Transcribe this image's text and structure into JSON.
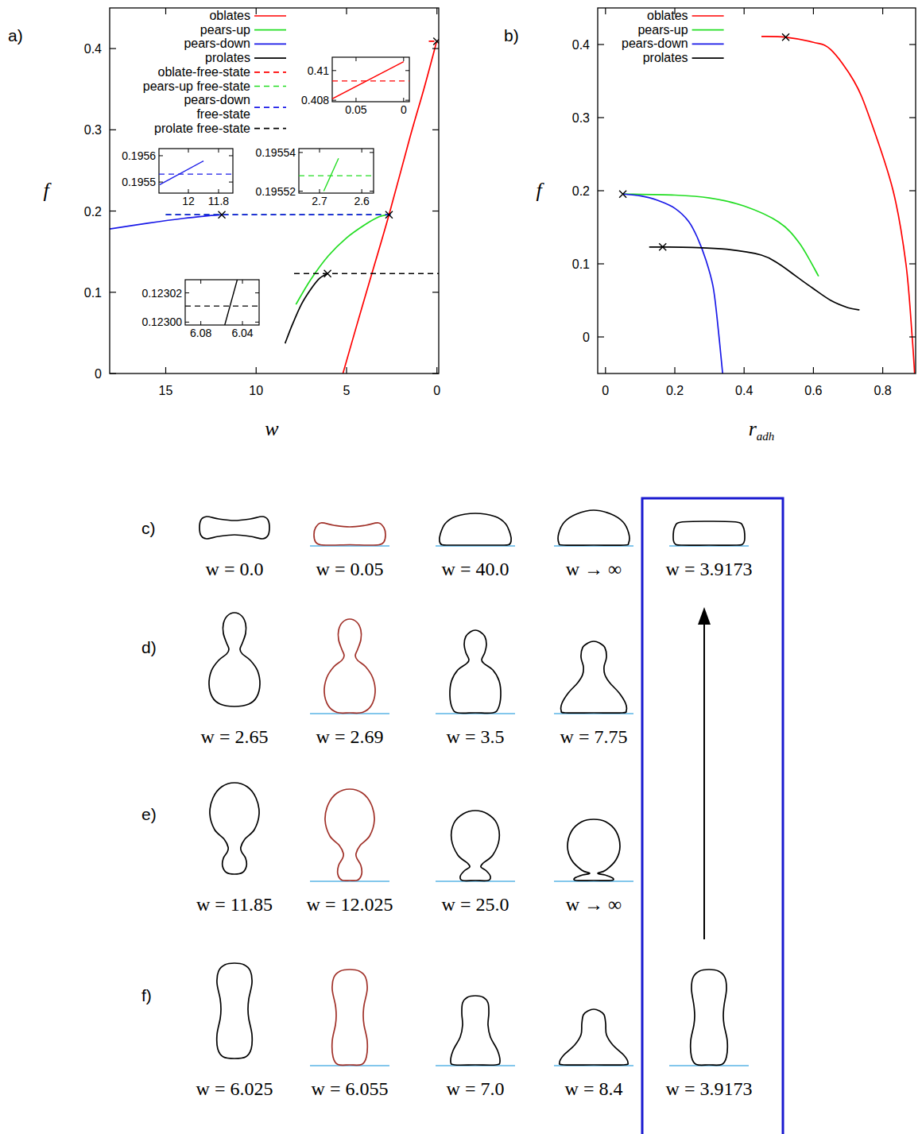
{
  "chart_data": [
    {
      "type": "line",
      "panel_label": "a)",
      "x_label": "w",
      "y_label": "f",
      "xlim": [
        18.1,
        -0.1
      ],
      "ylim": [
        0,
        0.45
      ],
      "xticks": [
        15,
        10,
        5,
        0
      ],
      "yticks": [
        0,
        0.1,
        0.2,
        0.3,
        0.4
      ],
      "grid": false,
      "legend": "top",
      "series": [
        {
          "name": "oblates",
          "color": "#ff0000",
          "line_style": "solid",
          "x": [
            5.2,
            4.4,
            3.6,
            2.65,
            1.5,
            0.7,
            0
          ],
          "values": [
            0,
            0.062,
            0.123,
            0.1955,
            0.29,
            0.352,
            0.41
          ]
        },
        {
          "name": "pears-up",
          "color": "#22dd22",
          "line_style": "solid",
          "x": [
            7.8,
            7,
            6,
            5,
            4,
            3.2,
            2.65
          ],
          "values": [
            0.085,
            0.115,
            0.145,
            0.167,
            0.183,
            0.193,
            0.1955
          ]
        },
        {
          "name": "pears-down",
          "color": "#1a1ae8",
          "line_style": "solid",
          "x": [
            18.1,
            16,
            14,
            12.5,
            11.9
          ],
          "values": [
            0.178,
            0.185,
            0.191,
            0.1945,
            0.1955
          ]
        },
        {
          "name": "prolates",
          "color": "#000000",
          "line_style": "solid",
          "x": [
            8.4,
            8,
            7.5,
            7,
            6.5,
            6.05
          ],
          "values": [
            0.037,
            0.06,
            0.085,
            0.103,
            0.117,
            0.123
          ]
        },
        {
          "name": "oblate-free-state",
          "color": "#ff0000",
          "line_style": "dashed",
          "x": [
            0.45,
            -0.1
          ],
          "values": [
            0.409,
            0.409
          ]
        },
        {
          "name": "pears-up free-state",
          "color": "#22dd22",
          "line_style": "dashed",
          "x": [
            15,
            2.5
          ],
          "values": [
            0.1955,
            0.1955
          ]
        },
        {
          "name": "pears-down\nfree-state",
          "color": "#1a1ae8",
          "line_style": "dashed",
          "x": [
            15,
            2.5
          ],
          "values": [
            0.1955,
            0.1955
          ]
        },
        {
          "name": "prolate free-state",
          "color": "#000000",
          "line_style": "dashed",
          "x": [
            7.9,
            -0.1
          ],
          "values": [
            0.123,
            0.123
          ]
        }
      ],
      "markers": {
        "marker": "x",
        "color": "#000000",
        "x": [
          0,
          2.65,
          11.9,
          6.05
        ],
        "values": [
          0.409,
          0.1955,
          0.1955,
          0.123
        ]
      },
      "insets": [
        {
          "xlim": [
            0.075,
            -0.006
          ],
          "ylim": [
            0.4079,
            0.4109
          ],
          "xticks": [
            0.05,
            0
          ],
          "yticks": [
            0.408,
            0.41
          ],
          "series": [
            {
              "color": "#ff0000",
              "line_style": "solid",
              "x": [
                0.075,
                0
              ],
              "values": [
                0.4081,
                0.4106
              ]
            },
            {
              "color": "#ff0000",
              "line_style": "dashed",
              "x": [
                0.075,
                -0.006
              ],
              "values": [
                0.4093,
                0.4093
              ]
            }
          ]
        },
        {
          "xlim": [
            12.195,
            11.705
          ],
          "ylim": [
            0.195458,
            0.195627
          ],
          "xticks": [
            12,
            11.8
          ],
          "yticks": [
            0.1956,
            0.1955
          ],
          "series": [
            {
              "color": "#1a1ae8",
              "line_style": "solid",
              "x": [
                12.19,
                11.9
              ],
              "values": [
                0.19549,
                0.19558
              ]
            },
            {
              "color": "#1a1ae8",
              "line_style": "dashed",
              "x": [
                12.195,
                11.705
              ],
              "values": [
                0.19553,
                0.19553
              ]
            }
          ]
        },
        {
          "xlim": [
            2.749,
            2.572
          ],
          "ylim": [
            0.195519,
            0.195542
          ],
          "xticks": [
            2.7,
            2.6
          ],
          "yticks": [
            0.19554,
            0.19552
          ],
          "series": [
            {
              "color": "#22dd22",
              "line_style": "solid",
              "x": [
                2.69,
                2.655
              ],
              "values": [
                0.19552,
                0.195537
              ]
            },
            {
              "color": "#22dd22",
              "line_style": "dashed",
              "x": [
                2.749,
                2.572
              ],
              "values": [
                0.195528,
                0.195528
              ]
            }
          ]
        },
        {
          "xlim": [
            6.095,
            6.024
          ],
          "ylim": [
            0.122998,
            0.123029
          ],
          "xticks": [
            6.08,
            6.04
          ],
          "yticks": [
            0.12302,
            {
              "value": 0.123,
              "label": "0.12300"
            }
          ],
          "series": [
            {
              "color": "#000000",
              "line_style": "solid",
              "x": [
                6.057,
                6.045
              ],
              "values": [
                0.122998,
                0.123029
              ]
            },
            {
              "color": "#000000",
              "line_style": "dashed",
              "x": [
                6.095,
                6.024
              ],
              "values": [
                0.123011,
                0.123011
              ]
            }
          ]
        }
      ]
    },
    {
      "type": "line",
      "panel_label": "b)",
      "x_label": "r",
      "x_label_subscript": "adh",
      "y_label": "f",
      "xlim": [
        -0.0225,
        0.895
      ],
      "ylim": [
        -0.05,
        0.45
      ],
      "xticks": [
        0,
        0.2,
        0.4,
        0.6,
        0.8
      ],
      "yticks": [
        0,
        0.1,
        0.2,
        0.3,
        0.4
      ],
      "grid": false,
      "legend": "top-left",
      "series": [
        {
          "name": "oblates",
          "color": "#ff0000",
          "line_style": "solid",
          "x": [
            0.45,
            0.52,
            0.6,
            0.65,
            0.717,
            0.762,
            0.83,
            0.867,
            0.885,
            0.892
          ],
          "values": [
            0.411,
            0.41,
            0.403,
            0.393,
            0.35,
            0.3,
            0.2,
            0.1,
            0,
            -0.05
          ]
        },
        {
          "name": "pears-up",
          "color": "#22dd22",
          "line_style": "solid",
          "x": [
            0.05,
            0.2,
            0.3,
            0.4,
            0.5,
            0.56,
            0.615
          ],
          "values": [
            0.1955,
            0.194,
            0.19,
            0.179,
            0.157,
            0.128,
            0.083
          ]
        },
        {
          "name": "pears-down",
          "color": "#1a1ae8",
          "line_style": "solid",
          "x": [
            0.05,
            0.1,
            0.15,
            0.2,
            0.24,
            0.266,
            0.29,
            0.31,
            0.322,
            0.338
          ],
          "values": [
            0.1955,
            0.193,
            0.187,
            0.176,
            0.158,
            0.135,
            0.105,
            0.07,
            0.026,
            -0.05
          ]
        },
        {
          "name": "prolates",
          "color": "#000000",
          "line_style": "solid",
          "x": [
            0.126,
            0.165,
            0.25,
            0.35,
            0.45,
            0.5,
            0.55,
            0.6,
            0.65,
            0.7,
            0.733
          ],
          "values": [
            0.123,
            0.123,
            0.1225,
            0.12,
            0.112,
            0.1,
            0.083,
            0.066,
            0.05,
            0.04,
            0.037
          ]
        }
      ],
      "markers": {
        "marker": "x",
        "color": "#000000",
        "x": [
          0.05,
          0.165,
          0.52
        ],
        "values": [
          0.1955,
          0.123,
          0.41
        ]
      }
    }
  ],
  "shape_panels": {
    "rows": [
      {
        "label": "c)",
        "shapes": [
          {
            "label": "w = 0.0",
            "substrate": false,
            "color": "#000000"
          },
          {
            "label": "w = 0.05",
            "substrate": true,
            "color": "#a03028"
          },
          {
            "label": "w = 40.0",
            "substrate": true,
            "color": "#000000"
          },
          {
            "label": "w → ∞",
            "substrate": true,
            "color": "#000000"
          },
          {
            "label": "w = 3.9173",
            "substrate": true,
            "color": "#000000"
          }
        ]
      },
      {
        "label": "d)",
        "shapes": [
          {
            "label": "w = 2.65",
            "substrate": false,
            "color": "#000000"
          },
          {
            "label": "w = 2.69",
            "substrate": true,
            "color": "#a03028"
          },
          {
            "label": "w = 3.5",
            "substrate": true,
            "color": "#000000"
          },
          {
            "label": "w = 7.75",
            "substrate": true,
            "color": "#000000"
          }
        ]
      },
      {
        "label": "e)",
        "shapes": [
          {
            "label": "w = 11.85",
            "substrate": false,
            "color": "#000000"
          },
          {
            "label": "w = 12.025",
            "substrate": true,
            "color": "#a03028"
          },
          {
            "label": "w = 25.0",
            "substrate": true,
            "color": "#000000"
          },
          {
            "label": "w → ∞",
            "substrate": true,
            "color": "#000000"
          }
        ]
      },
      {
        "label": "f)",
        "shapes": [
          {
            "label": "w = 6.025",
            "substrate": false,
            "color": "#000000"
          },
          {
            "label": "w = 6.055",
            "substrate": true,
            "color": "#a03028"
          },
          {
            "label": "w = 7.0",
            "substrate": true,
            "color": "#000000"
          },
          {
            "label": "w = 8.4",
            "substrate": true,
            "color": "#000000"
          },
          {
            "label": "w = 3.9173",
            "substrate": true,
            "color": "#000000"
          }
        ]
      }
    ]
  }
}
